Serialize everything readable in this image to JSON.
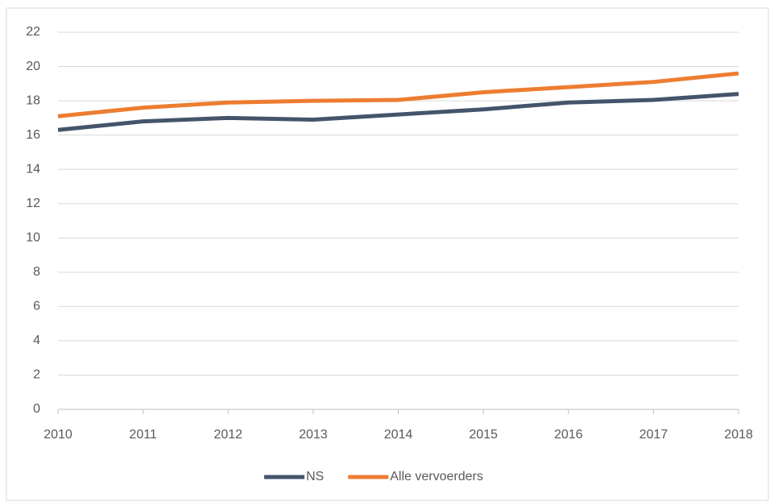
{
  "chart_data": {
    "type": "line",
    "x": [
      2010,
      2011,
      2012,
      2013,
      2014,
      2015,
      2016,
      2017,
      2018
    ],
    "series": [
      {
        "name": "NS",
        "color": "#44546a",
        "values": [
          16.3,
          16.8,
          17.0,
          16.9,
          17.2,
          17.5,
          17.9,
          18.05,
          18.4
        ]
      },
      {
        "name": "Alle vervoerders",
        "color": "#ed7d31",
        "values": [
          17.1,
          17.6,
          17.9,
          18.0,
          18.05,
          18.5,
          18.8,
          19.1,
          19.6
        ]
      }
    ],
    "xlim": [
      2010,
      2018
    ],
    "xticks": [
      2010,
      2011,
      2012,
      2013,
      2014,
      2015,
      2016,
      2017,
      2018
    ],
    "ylim": [
      0,
      22
    ],
    "yticks": [
      0,
      2,
      4,
      6,
      8,
      10,
      12,
      14,
      16,
      18,
      20,
      22
    ],
    "grid": true,
    "legend": "bottom"
  }
}
